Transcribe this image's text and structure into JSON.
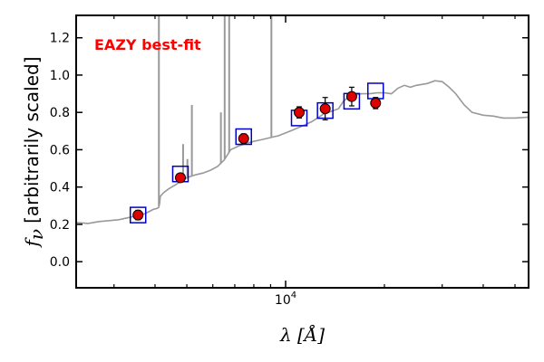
{
  "chart_data": {
    "type": "scatter",
    "title": "",
    "annotation": "EAZY best-fit",
    "annotation_color": "#ff0000",
    "xlabel": "λ [Å]",
    "ylabel_symbol": "f",
    "ylabel_subscript": "ν",
    "ylabel_text": "[arbitrarily scaled]",
    "x_scale": "log",
    "xlim": [
      2300,
      55000
    ],
    "ylim": [
      -0.14,
      1.32
    ],
    "x_tick_labels": [
      {
        "value": 10000,
        "base": "10",
        "exponent": "4"
      }
    ],
    "x_minor_ticks": [
      3000,
      4000,
      5000,
      6000,
      7000,
      8000,
      9000,
      20000,
      30000,
      40000,
      50000
    ],
    "y_ticks": [
      0.0,
      0.2,
      0.4,
      0.6,
      0.8,
      1.0,
      1.2
    ],
    "y_tick_labels": [
      "0.0",
      "0.2",
      "0.4",
      "0.6",
      "0.8",
      "1.0",
      "1.2"
    ],
    "grid": false,
    "colors": {
      "template": "#999999",
      "observed_fill": "#dd0000",
      "observed_edge": "#000000",
      "model_box": "#0000cc",
      "axes": "#000000"
    },
    "series": [
      {
        "name": "",
        "kind": "template",
        "points": [
          [
            2300,
            0.21
          ],
          [
            2500,
            0.205
          ],
          [
            2700,
            0.215
          ],
          [
            2900,
            0.22
          ],
          [
            3100,
            0.225
          ],
          [
            3300,
            0.235
          ],
          [
            3500,
            0.245
          ],
          [
            3700,
            0.255
          ],
          [
            3850,
            0.27
          ],
          [
            3950,
            0.28
          ],
          [
            4050,
            0.285
          ],
          [
            4100,
            0.29
          ],
          [
            4130,
            0.31
          ],
          [
            4150,
            0.35
          ],
          [
            4250,
            0.37
          ],
          [
            4400,
            0.39
          ],
          [
            4600,
            0.41
          ],
          [
            4800,
            0.43
          ],
          [
            5000,
            0.45
          ],
          [
            5300,
            0.465
          ],
          [
            5600,
            0.475
          ],
          [
            5900,
            0.49
          ],
          [
            6200,
            0.51
          ],
          [
            6500,
            0.545
          ],
          [
            6800,
            0.6
          ],
          [
            7200,
            0.62
          ],
          [
            7600,
            0.635
          ],
          [
            8000,
            0.645
          ],
          [
            8500,
            0.655
          ],
          [
            9000,
            0.665
          ],
          [
            9500,
            0.675
          ],
          [
            10000,
            0.69
          ],
          [
            10500,
            0.705
          ],
          [
            11000,
            0.72
          ],
          [
            11500,
            0.735
          ],
          [
            12000,
            0.75
          ],
          [
            12500,
            0.77
          ],
          [
            13000,
            0.79
          ],
          [
            13500,
            0.8
          ],
          [
            14000,
            0.81
          ],
          [
            14500,
            0.82
          ],
          [
            15000,
            0.86
          ],
          [
            15500,
            0.88
          ],
          [
            16000,
            0.89
          ],
          [
            17000,
            0.9
          ],
          [
            18000,
            0.9
          ],
          [
            19000,
            0.905
          ],
          [
            20000,
            0.905
          ],
          [
            21000,
            0.9
          ],
          [
            22000,
            0.93
          ],
          [
            23000,
            0.945
          ],
          [
            24000,
            0.935
          ],
          [
            25000,
            0.945
          ],
          [
            27000,
            0.955
          ],
          [
            28500,
            0.97
          ],
          [
            30000,
            0.965
          ],
          [
            31500,
            0.935
          ],
          [
            33000,
            0.9
          ],
          [
            35000,
            0.84
          ],
          [
            37000,
            0.8
          ],
          [
            40000,
            0.785
          ],
          [
            43000,
            0.78
          ],
          [
            46000,
            0.77
          ],
          [
            50000,
            0.77
          ],
          [
            55000,
            0.775
          ]
        ],
        "emission_lines": [
          {
            "x": 4110,
            "peak": 1.32
          },
          {
            "x": 4870,
            "peak": 0.63
          },
          {
            "x": 5020,
            "peak": 0.55
          },
          {
            "x": 5180,
            "peak": 0.84
          },
          {
            "x": 6350,
            "peak": 0.8
          },
          {
            "x": 6520,
            "peak": 1.32
          },
          {
            "x": 6730,
            "peak": 1.32
          },
          {
            "x": 9050,
            "peak": 1.32
          }
        ]
      },
      {
        "name": "",
        "kind": "observed",
        "points": [
          {
            "x": 3550,
            "y": 0.25,
            "yerr": 0.025
          },
          {
            "x": 4780,
            "y": 0.45,
            "yerr": 0.02
          },
          {
            "x": 7450,
            "y": 0.66,
            "yerr": 0.025
          },
          {
            "x": 11000,
            "y": 0.8,
            "yerr": 0.03
          },
          {
            "x": 13200,
            "y": 0.82,
            "yerr": 0.06
          },
          {
            "x": 15900,
            "y": 0.885,
            "yerr": 0.05
          },
          {
            "x": 18800,
            "y": 0.85,
            "yerr": 0.03
          }
        ]
      },
      {
        "name": "",
        "kind": "model",
        "points": [
          {
            "x": 3550,
            "y": 0.25
          },
          {
            "x": 4780,
            "y": 0.47
          },
          {
            "x": 7450,
            "y": 0.67
          },
          {
            "x": 11000,
            "y": 0.77
          },
          {
            "x": 13200,
            "y": 0.81
          },
          {
            "x": 15900,
            "y": 0.86
          },
          {
            "x": 18800,
            "y": 0.915
          }
        ]
      }
    ]
  }
}
